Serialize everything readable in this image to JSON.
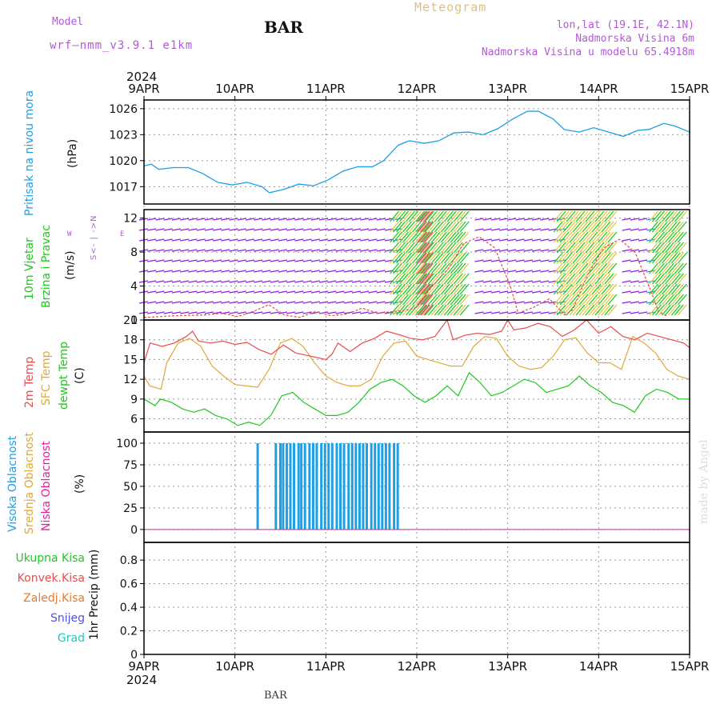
{
  "header": {
    "model_label": "Model",
    "model_name": "wrf—nmm_v3.9.1  e1km",
    "station": "BAR",
    "product": "Meteogram",
    "coords": "lon,lat (19.1E, 42.1N)",
    "elevation": "Nadmorska Visina 6m",
    "model_elevation": "Nadmorska Visina u modelu 65.4918m"
  },
  "footer": {
    "station": "BAR",
    "watermark": "made by Angel"
  },
  "time_axis": {
    "year": "2024",
    "ticks": [
      "9APR",
      "10APR",
      "11APR",
      "12APR",
      "13APR",
      "14APR",
      "15APR"
    ]
  },
  "colors": {
    "pressure": "#1ea0e6",
    "temp2m": "#e84c4c",
    "sfc": "#e0a83a",
    "dewpt": "#1ec81e",
    "cloud_high": "#1ea0e6",
    "cloud_mid": "#e0a83a",
    "cloud_low": "#e0209c",
    "wind_speed": "#e84c4c",
    "wind_low": "#8c1ee6",
    "wind_mid": "#1e9ae6",
    "wind_high": "#1ec81e",
    "wind_veryhigh": "#e0c83a"
  },
  "panels": {
    "pressure": {
      "ylabel": "Pritisak na nivou mora",
      "unit": "(hPa)",
      "yticks": [
        "1017",
        "1020",
        "1023",
        "1026"
      ]
    },
    "wind": {
      "ylabel1": "10m Vjetar",
      "ylabel2": "Brzina i Pravac",
      "unit": "(m/s)",
      "compass_top": "N",
      "compass_left": "W",
      "compass_right": "E",
      "compass_mid": "<- | ->",
      "compass_bottom": "S",
      "yticks": [
        "0",
        "4",
        "8",
        "12"
      ]
    },
    "temperature": {
      "label1": "2m Temp",
      "label2": "SFC Temp",
      "label3": "dewpt Temp",
      "unit": "(C)",
      "yticks": [
        "6",
        "9",
        "12",
        "15",
        "18",
        "21"
      ]
    },
    "cloud": {
      "label1": "Visoka Oblacnost",
      "label2": "Srednja Oblacnost",
      "label3": "Niska Oblacnost",
      "unit": "(%)",
      "yticks": [
        "0",
        "25",
        "50",
        "75",
        "100"
      ]
    },
    "precip": {
      "labels": [
        "Ukupna Kisa",
        "Konvek.Kisa",
        "Zaledj.Kisa",
        "Snijeg",
        "Grad"
      ],
      "label_colors": [
        "#1ec81e",
        "#e84c4c",
        "#e87a2a",
        "#5050e6",
        "#1ec8c8"
      ],
      "unit": "1hr Precip (mm)",
      "yticks": [
        "0",
        "0.2",
        "0.4",
        "0.6",
        "0.8"
      ]
    }
  },
  "chart_data": {
    "type": "line",
    "x_unit": "days from 2024-04-09 00 UTC",
    "x_range": [
      0,
      6
    ],
    "pressure": {
      "name": "Pritisak na nivou mora",
      "ylim": [
        1015,
        1027
      ],
      "points": [
        [
          0,
          1019.4
        ],
        [
          0.1,
          1019.6
        ],
        [
          0.2,
          1019.0
        ],
        [
          0.4,
          1019.2
        ],
        [
          0.6,
          1019.2
        ],
        [
          0.8,
          1018.5
        ],
        [
          1.0,
          1017.5
        ],
        [
          1.2,
          1017.2
        ],
        [
          1.4,
          1017.5
        ],
        [
          1.6,
          1017.0
        ],
        [
          1.7,
          1016.3
        ],
        [
          1.9,
          1016.7
        ],
        [
          2.1,
          1017.3
        ],
        [
          2.3,
          1017.1
        ],
        [
          2.5,
          1017.8
        ],
        [
          2.7,
          1018.8
        ],
        [
          2.9,
          1019.3
        ],
        [
          3.1,
          1019.3
        ],
        [
          3.25,
          1020.0
        ],
        [
          3.45,
          1021.8
        ],
        [
          3.6,
          1022.3
        ],
        [
          3.8,
          1022.0
        ],
        [
          4.0,
          1022.3
        ],
        [
          4.2,
          1023.2
        ],
        [
          4.4,
          1023.3
        ],
        [
          4.6,
          1023.0
        ],
        [
          4.8,
          1023.7
        ],
        [
          5.0,
          1024.8
        ],
        [
          5.2,
          1025.7
        ],
        [
          5.35,
          1025.7
        ],
        [
          5.55,
          1024.8
        ],
        [
          5.7,
          1023.6
        ],
        [
          5.9,
          1023.3
        ],
        [
          6.1,
          1023.8
        ],
        [
          6.3,
          1023.3
        ],
        [
          6.5,
          1022.8
        ],
        [
          6.7,
          1023.5
        ],
        [
          6.85,
          1023.6
        ],
        [
          7.05,
          1024.3
        ],
        [
          7.2,
          1024.0
        ],
        [
          7.4,
          1023.3
        ]
      ]
    },
    "wind_speed": {
      "name": "10m wind speed",
      "ylim": [
        0,
        13
      ],
      "points": [
        [
          0,
          0.3
        ],
        [
          0.4,
          0.5
        ],
        [
          0.8,
          0.6
        ],
        [
          1.0,
          0.8
        ],
        [
          1.2,
          0.4
        ],
        [
          1.4,
          1.0
        ],
        [
          1.6,
          1.8
        ],
        [
          1.8,
          0.6
        ],
        [
          2.0,
          0.3
        ],
        [
          2.2,
          1.0
        ],
        [
          2.4,
          0.5
        ],
        [
          2.6,
          0.7
        ],
        [
          2.8,
          1.4
        ],
        [
          3.0,
          0.8
        ],
        [
          3.2,
          1.0
        ],
        [
          3.4,
          1.2
        ],
        [
          3.5,
          1.5
        ],
        [
          3.7,
          4.0
        ],
        [
          3.9,
          6.0
        ],
        [
          4.1,
          9.0
        ],
        [
          4.3,
          9.8
        ],
        [
          4.5,
          8.5
        ],
        [
          4.7,
          4.0
        ],
        [
          4.8,
          0.8
        ],
        [
          5.0,
          1.5
        ],
        [
          5.2,
          2.5
        ],
        [
          5.4,
          0.6
        ],
        [
          5.5,
          1.2
        ],
        [
          5.7,
          5.5
        ],
        [
          5.9,
          8.5
        ],
        [
          6.1,
          9.5
        ],
        [
          6.3,
          8.0
        ],
        [
          6.5,
          3.5
        ],
        [
          6.6,
          1.0
        ],
        [
          6.7,
          0.5
        ]
      ]
    },
    "temp_2m": {
      "name": "2m Temp",
      "ylim": [
        4,
        21
      ],
      "points": [
        [
          0,
          14.5
        ],
        [
          0.1,
          17.5
        ],
        [
          0.3,
          17.0
        ],
        [
          0.5,
          17.5
        ],
        [
          0.7,
          18.5
        ],
        [
          0.8,
          19.3
        ],
        [
          0.9,
          17.8
        ],
        [
          1.1,
          17.5
        ],
        [
          1.3,
          17.8
        ],
        [
          1.5,
          17.3
        ],
        [
          1.7,
          17.6
        ],
        [
          1.9,
          16.5
        ],
        [
          2.1,
          15.8
        ],
        [
          2.3,
          17.2
        ],
        [
          2.5,
          16.0
        ],
        [
          2.7,
          15.6
        ],
        [
          2.9,
          15.2
        ],
        [
          3.0,
          15.0
        ],
        [
          3.1,
          15.8
        ],
        [
          3.2,
          17.5
        ],
        [
          3.4,
          16.2
        ],
        [
          3.6,
          17.5
        ],
        [
          3.8,
          18.2
        ],
        [
          4.0,
          19.3
        ],
        [
          4.2,
          18.8
        ],
        [
          4.4,
          18.2
        ],
        [
          4.6,
          18.0
        ],
        [
          4.8,
          18.5
        ],
        [
          5.0,
          21.0
        ],
        [
          5.1,
          18.0
        ],
        [
          5.3,
          18.7
        ],
        [
          5.5,
          19.0
        ],
        [
          5.7,
          18.8
        ],
        [
          5.9,
          19.3
        ],
        [
          6.0,
          21.0
        ],
        [
          6.1,
          19.5
        ],
        [
          6.3,
          19.8
        ],
        [
          6.5,
          20.5
        ],
        [
          6.7,
          20.0
        ],
        [
          6.9,
          18.5
        ],
        [
          7.1,
          19.5
        ],
        [
          7.3,
          21.0
        ],
        [
          7.5,
          19.0
        ],
        [
          7.7,
          20.0
        ],
        [
          7.9,
          18.5
        ],
        [
          8.1,
          18.0
        ],
        [
          8.3,
          19.0
        ],
        [
          8.5,
          18.5
        ],
        [
          8.7,
          18.0
        ],
        [
          8.9,
          17.5
        ],
        [
          9.0,
          16.8
        ]
      ]
    },
    "temp_sfc": {
      "name": "SFC Temp",
      "ylim": [
        4,
        21
      ],
      "points": [
        [
          0,
          12.5
        ],
        [
          0.1,
          11.0
        ],
        [
          0.3,
          10.5
        ],
        [
          0.4,
          14.5
        ],
        [
          0.6,
          17.5
        ],
        [
          0.8,
          18.2
        ],
        [
          1.0,
          17.0
        ],
        [
          1.2,
          14.0
        ],
        [
          1.4,
          12.5
        ],
        [
          1.6,
          11.2
        ],
        [
          1.8,
          11.0
        ],
        [
          2.0,
          10.8
        ],
        [
          2.2,
          13.5
        ],
        [
          2.4,
          17.5
        ],
        [
          2.6,
          18.2
        ],
        [
          2.8,
          17.0
        ],
        [
          3.0,
          14.5
        ],
        [
          3.2,
          12.5
        ],
        [
          3.4,
          11.5
        ],
        [
          3.6,
          11.0
        ],
        [
          3.8,
          11.0
        ],
        [
          4.0,
          12.0
        ],
        [
          4.2,
          15.5
        ],
        [
          4.4,
          17.5
        ],
        [
          4.6,
          17.8
        ],
        [
          4.8,
          15.5
        ],
        [
          5.0,
          15.0
        ],
        [
          5.2,
          14.5
        ],
        [
          5.4,
          14.0
        ],
        [
          5.6,
          14.0
        ],
        [
          5.8,
          17.0
        ],
        [
          6.0,
          18.5
        ],
        [
          6.2,
          18.2
        ],
        [
          6.4,
          15.5
        ],
        [
          6.6,
          14.0
        ],
        [
          6.8,
          13.5
        ],
        [
          7.0,
          13.8
        ],
        [
          7.2,
          15.5
        ],
        [
          7.4,
          18.0
        ],
        [
          7.6,
          18.3
        ],
        [
          7.8,
          16.0
        ],
        [
          8.0,
          14.5
        ],
        [
          8.2,
          14.5
        ],
        [
          8.4,
          13.5
        ],
        [
          8.6,
          18.5
        ],
        [
          8.8,
          17.5
        ],
        [
          9.0,
          16.0
        ],
        [
          9.2,
          13.5
        ],
        [
          9.4,
          12.5
        ],
        [
          9.6,
          12.0
        ]
      ]
    },
    "temp_dewpt": {
      "name": "dewpt Temp",
      "ylim": [
        4,
        21
      ],
      "points": [
        [
          0,
          9.0
        ],
        [
          0.2,
          8.0
        ],
        [
          0.3,
          9.0
        ],
        [
          0.5,
          8.5
        ],
        [
          0.7,
          7.5
        ],
        [
          0.9,
          7.0
        ],
        [
          1.1,
          7.5
        ],
        [
          1.3,
          6.5
        ],
        [
          1.5,
          6.0
        ],
        [
          1.7,
          5.0
        ],
        [
          1.9,
          5.5
        ],
        [
          2.1,
          5.0
        ],
        [
          2.3,
          6.5
        ],
        [
          2.5,
          9.5
        ],
        [
          2.7,
          10.0
        ],
        [
          2.9,
          8.5
        ],
        [
          3.1,
          7.5
        ],
        [
          3.3,
          6.5
        ],
        [
          3.5,
          6.5
        ],
        [
          3.7,
          7.0
        ],
        [
          3.9,
          8.5
        ],
        [
          4.1,
          10.5
        ],
        [
          4.3,
          11.5
        ],
        [
          4.5,
          12.0
        ],
        [
          4.7,
          11.0
        ],
        [
          4.9,
          9.5
        ],
        [
          5.1,
          8.5
        ],
        [
          5.3,
          9.5
        ],
        [
          5.5,
          11.0
        ],
        [
          5.7,
          9.5
        ],
        [
          5.9,
          13.0
        ],
        [
          6.1,
          11.5
        ],
        [
          6.3,
          9.5
        ],
        [
          6.5,
          10.0
        ],
        [
          6.7,
          11.0
        ],
        [
          6.9,
          12.0
        ],
        [
          7.1,
          11.5
        ],
        [
          7.3,
          10.0
        ],
        [
          7.5,
          10.5
        ],
        [
          7.7,
          11.0
        ],
        [
          7.9,
          12.5
        ],
        [
          8.1,
          11.0
        ],
        [
          8.3,
          10.0
        ],
        [
          8.5,
          8.5
        ],
        [
          8.7,
          8.0
        ],
        [
          8.9,
          7.0
        ],
        [
          9.1,
          9.5
        ],
        [
          9.3,
          10.5
        ],
        [
          9.5,
          10.0
        ],
        [
          9.7,
          9.0
        ],
        [
          9.9,
          9.0
        ]
      ]
    },
    "cloud_high": {
      "name": "Visoka Oblacnost",
      "ylim": [
        0,
        100
      ],
      "bars": [
        1.25,
        1.45,
        1.5,
        1.53,
        1.57,
        1.61,
        1.65,
        1.7,
        1.73,
        1.77,
        1.82,
        1.86,
        1.9,
        1.95,
        1.99,
        2.03,
        2.07,
        2.12,
        2.16,
        2.2,
        2.25,
        2.29,
        2.33,
        2.37,
        2.41,
        2.45,
        2.5,
        2.54,
        2.58,
        2.62,
        2.66,
        2.7,
        2.75,
        2.79
      ],
      "bar_value": 100
    },
    "precip": {
      "name": "1hr Precip",
      "ylim": [
        0,
        0.95
      ],
      "values": []
    }
  }
}
